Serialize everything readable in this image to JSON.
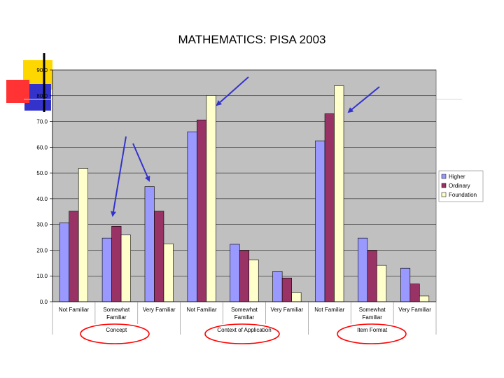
{
  "slide": {
    "title": "MATHEMATICS: PISA 2003"
  },
  "colors": {
    "plot_bg": "#c0c0c0",
    "higher": "#9999ff",
    "ordinary": "#993366",
    "foundation": "#ffffcc",
    "arrow": "#3333cc",
    "circle": "#ff0000",
    "deco_yellow": "#ffd700",
    "deco_blue": "#3333cc",
    "deco_red": "#ff3333"
  },
  "chart_data": {
    "type": "bar",
    "ylim": [
      0,
      90
    ],
    "yticks": [
      "0.0",
      "10.0",
      "20.0",
      "30.0",
      "40.0",
      "50.0",
      "60.0",
      "70.0",
      "80.0",
      "90.0"
    ],
    "categories": [
      "Not Familiar",
      "Somewhat Familiar",
      "Very Familiar",
      "Not Familiar",
      "Somewhat Familiar",
      "Very Familiar",
      "Not Familiar",
      "Somewhat Familiar",
      "Very Familiar"
    ],
    "category_lines": [
      [
        "Not Familiar"
      ],
      [
        "Somewhat",
        "Familiar"
      ],
      [
        "Very Familiar"
      ],
      [
        "Not Familiar"
      ],
      [
        "Somewhat",
        "Familiar"
      ],
      [
        "Very Familiar"
      ],
      [
        "Not Familiar"
      ],
      [
        "Somewhat",
        "Familiar"
      ],
      [
        "Very Familiar"
      ]
    ],
    "groups": [
      "Concept",
      "Context of Application",
      "Item Format"
    ],
    "series": [
      {
        "name": "Higher",
        "values": [
          30.7,
          24.7,
          44.7,
          66.0,
          22.3,
          11.8,
          62.5,
          24.7,
          13.0
        ]
      },
      {
        "name": "Ordinary",
        "values": [
          35.2,
          29.3,
          35.2,
          70.6,
          19.9,
          9.2,
          73.0,
          19.9,
          6.9
        ]
      },
      {
        "name": "Foundation",
        "values": [
          51.8,
          25.9,
          22.5,
          80.1,
          16.3,
          3.6,
          83.9,
          14.1,
          2.2
        ]
      }
    ],
    "legend": "right"
  }
}
